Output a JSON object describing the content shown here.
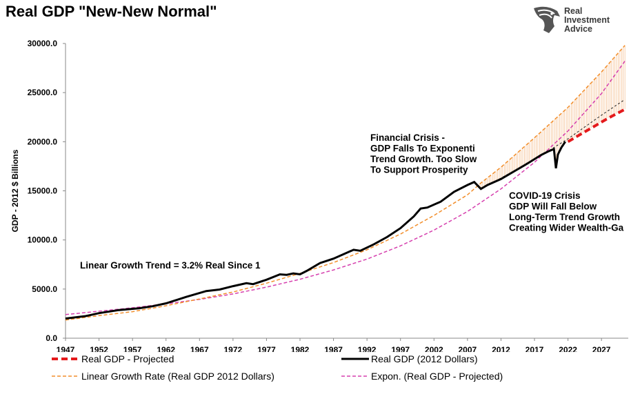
{
  "title": "Real GDP \"New-New Normal\"",
  "logo": {
    "line1": "Real",
    "line2": "Investment",
    "line3": "Advice",
    "icon": "eagle-head-icon"
  },
  "colors": {
    "actual": "#000000",
    "projected": "#e41a1c",
    "linear": "#f28e2b",
    "expon": "#d63fae",
    "gap": "#f0a35e",
    "trend_dotted": "#1a1a1a"
  },
  "chart_data": {
    "type": "line",
    "ylabel": "GDP - 2012 $ Billions",
    "xlabel": "",
    "xlim": [
      1947,
      2031
    ],
    "ylim": [
      0,
      30000
    ],
    "grid": false,
    "legend_position": "bottom",
    "x_ticks": [
      "1947",
      "1952",
      "1957",
      "1962",
      "1967",
      "1972",
      "1977",
      "1982",
      "1987",
      "1992",
      "1997",
      "2002",
      "2007",
      "2012",
      "2017",
      "2022",
      "2027"
    ],
    "y_ticks": [
      "0.0",
      "5000.0",
      "10000.0",
      "15000.0",
      "20000.0",
      "25000.0",
      "30000.0"
    ],
    "series": [
      {
        "name": "Real GDP (2012 Dollars)",
        "style": "solid-thick",
        "x": [
          1947,
          1950,
          1952,
          1955,
          1958,
          1960,
          1962,
          1965,
          1968,
          1970,
          1972,
          1974,
          1975,
          1977,
          1979,
          1980,
          1981,
          1982,
          1983,
          1985,
          1987,
          1990,
          1991,
          1993,
          1995,
          1997,
          1999,
          2000,
          2001,
          2003,
          2005,
          2007,
          2008,
          2009,
          2010,
          2012,
          2014,
          2016,
          2018,
          2019,
          2019.9,
          2020.2,
          2020.5,
          2021,
          2021.6
        ],
        "y": [
          2000,
          2250,
          2550,
          2870,
          3050,
          3250,
          3550,
          4200,
          4800,
          4950,
          5300,
          5600,
          5500,
          5950,
          6500,
          6450,
          6600,
          6500,
          6850,
          7650,
          8100,
          9000,
          8900,
          9550,
          10300,
          11200,
          12400,
          13200,
          13300,
          13900,
          14900,
          15600,
          15900,
          15200,
          15600,
          16200,
          17000,
          17800,
          18650,
          19000,
          19250,
          17300,
          18700,
          19400,
          20000
        ]
      },
      {
        "name": "Real GDP - Projected",
        "style": "dashed-red",
        "x": [
          2022,
          2024,
          2026,
          2028,
          2030.5
        ],
        "y": [
          20000,
          20800,
          21600,
          22400,
          23300
        ]
      },
      {
        "name": "Linear Growth Rate (Real GDP 2012 Dollars)",
        "style": "dashed-orange",
        "x": [
          1947,
          1952,
          1957,
          1962,
          1967,
          1972,
          1977,
          1982,
          1987,
          1992,
          1997,
          2002,
          2007,
          2009,
          2012,
          2017,
          2022,
          2027,
          2030.5
        ],
        "y": [
          1850,
          2300,
          2700,
          3300,
          4000,
          4700,
          5600,
          6600,
          7700,
          9000,
          10600,
          12500,
          14600,
          15800,
          17400,
          20400,
          23500,
          27100,
          29800
        ]
      },
      {
        "name": "Expon. (Real GDP - Projected)",
        "style": "dashed-magenta",
        "x": [
          1947,
          1952,
          1957,
          1962,
          1967,
          1972,
          1977,
          1982,
          1987,
          1992,
          1997,
          2002,
          2007,
          2012,
          2017,
          2022,
          2027,
          2030.5
        ],
        "y": [
          2400,
          2750,
          3100,
          3500,
          3950,
          4500,
          5200,
          6000,
          6950,
          8050,
          9400,
          11000,
          12900,
          15200,
          17900,
          21100,
          24900,
          28200
        ]
      },
      {
        "name": "",
        "style": "dotted-dark",
        "x": [
          2009,
          2012,
          2017,
          2022,
          2027,
          2030.5
        ],
        "y": [
          15200,
          16300,
          18200,
          20300,
          22700,
          24300
        ]
      }
    ],
    "annotations": [
      {
        "text": "Linear Growth Trend = 3.2% Real Since 1"
      },
      {
        "lines": [
          "Financial Crisis -",
          "GDP Falls To Exponenti",
          "Trend Growth. Too Slow",
          "To Support Prosperity"
        ]
      },
      {
        "lines": [
          "COVID-19 Crisis",
          "GDP Will Fall Below",
          "Long-Term Trend Growth",
          "Creating Wider Wealth-Ga"
        ]
      }
    ],
    "legend": [
      {
        "label": "Real GDP - Projected",
        "style": "dashed-red"
      },
      {
        "label": "Real GDP (2012 Dollars)",
        "style": "solid-thick"
      },
      {
        "label": "Linear Growth Rate (Real GDP 2012 Dollars)",
        "style": "dashed-orange"
      },
      {
        "label": "Expon. (Real GDP - Projected)",
        "style": "dashed-magenta"
      }
    ]
  }
}
